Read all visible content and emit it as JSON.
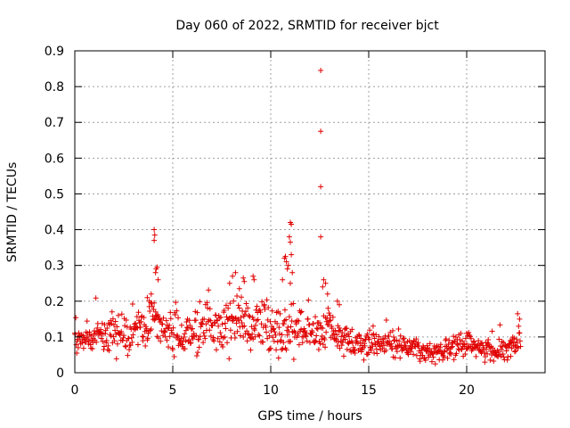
{
  "chart_data": {
    "type": "scatter",
    "title": "Day 060 of 2022, SRMTID for receiver bjct",
    "xlabel": "GPS time / hours",
    "ylabel": "SRMTID / TECUs",
    "xlim": [
      0,
      24
    ],
    "ylim": [
      0,
      0.9
    ],
    "xticks": [
      0,
      5,
      10,
      15,
      20
    ],
    "yticks": [
      0,
      0.1,
      0.2,
      0.3,
      0.4,
      0.5,
      0.6,
      0.7,
      0.8,
      0.9
    ],
    "xtick_labels": [
      "0",
      "5",
      "10",
      "15",
      "20"
    ],
    "ytick_labels": [
      "0",
      "0.1",
      "0.2",
      "0.3",
      "0.4",
      "0.5",
      "0.6",
      "0.7",
      "0.8",
      "0.9"
    ],
    "grid": true,
    "marker": "+",
    "color": "#e00000",
    "series": [
      {
        "name": "SRMTID",
        "trend": [
          [
            0.0,
            0.1
          ],
          [
            0.5,
            0.09
          ],
          [
            1.0,
            0.11
          ],
          [
            1.5,
            0.12
          ],
          [
            2.0,
            0.11
          ],
          [
            2.5,
            0.1
          ],
          [
            3.0,
            0.11
          ],
          [
            3.5,
            0.13
          ],
          [
            4.0,
            0.14
          ],
          [
            4.5,
            0.13
          ],
          [
            5.0,
            0.11
          ],
          [
            5.5,
            0.1
          ],
          [
            6.0,
            0.11
          ],
          [
            6.5,
            0.12
          ],
          [
            7.0,
            0.13
          ],
          [
            7.5,
            0.12
          ],
          [
            8.0,
            0.15
          ],
          [
            8.5,
            0.13
          ],
          [
            9.0,
            0.12
          ],
          [
            9.5,
            0.13
          ],
          [
            10.0,
            0.12
          ],
          [
            10.5,
            0.11
          ],
          [
            11.0,
            0.13
          ],
          [
            11.5,
            0.12
          ],
          [
            12.0,
            0.1
          ],
          [
            12.5,
            0.11
          ],
          [
            13.0,
            0.12
          ],
          [
            13.5,
            0.1
          ],
          [
            14.0,
            0.09
          ],
          [
            14.5,
            0.08
          ],
          [
            15.0,
            0.08
          ],
          [
            15.5,
            0.08
          ],
          [
            16.0,
            0.08
          ],
          [
            16.5,
            0.07
          ],
          [
            17.0,
            0.075
          ],
          [
            17.5,
            0.07
          ],
          [
            18.0,
            0.055
          ],
          [
            18.5,
            0.06
          ],
          [
            19.0,
            0.065
          ],
          [
            19.5,
            0.07
          ],
          [
            20.0,
            0.08
          ],
          [
            20.5,
            0.07
          ],
          [
            21.0,
            0.065
          ],
          [
            21.5,
            0.06
          ],
          [
            22.0,
            0.07
          ],
          [
            22.5,
            0.08
          ],
          [
            22.75,
            0.09
          ]
        ],
        "spread": [
          [
            0.0,
            0.035
          ],
          [
            4.0,
            0.05
          ],
          [
            8.0,
            0.055
          ],
          [
            11.0,
            0.05
          ],
          [
            13.0,
            0.04
          ],
          [
            15.0,
            0.03
          ],
          [
            18.0,
            0.025
          ],
          [
            21.0,
            0.025
          ],
          [
            22.75,
            0.03
          ]
        ],
        "sample_step_hours": 0.025,
        "outliers": [
          [
            4.05,
            0.4
          ],
          [
            4.08,
            0.385
          ],
          [
            4.05,
            0.37
          ],
          [
            4.15,
            0.29
          ],
          [
            4.2,
            0.295
          ],
          [
            4.12,
            0.28
          ],
          [
            4.25,
            0.26
          ],
          [
            3.9,
            0.22
          ],
          [
            3.7,
            0.21
          ],
          [
            3.8,
            0.2
          ],
          [
            8.05,
            0.27
          ],
          [
            8.2,
            0.28
          ],
          [
            8.6,
            0.265
          ],
          [
            8.65,
            0.255
          ],
          [
            7.9,
            0.25
          ],
          [
            8.4,
            0.235
          ],
          [
            10.6,
            0.26
          ],
          [
            10.7,
            0.32
          ],
          [
            10.75,
            0.325
          ],
          [
            10.8,
            0.31
          ],
          [
            10.85,
            0.29
          ],
          [
            11.0,
            0.42
          ],
          [
            11.05,
            0.415
          ],
          [
            10.95,
            0.38
          ],
          [
            11.0,
            0.365
          ],
          [
            11.05,
            0.33
          ],
          [
            10.9,
            0.3
          ],
          [
            11.1,
            0.28
          ],
          [
            11.0,
            0.25
          ],
          [
            12.55,
            0.845
          ],
          [
            12.55,
            0.675
          ],
          [
            12.55,
            0.52
          ],
          [
            12.55,
            0.38
          ],
          [
            12.7,
            0.26
          ],
          [
            12.8,
            0.25
          ],
          [
            12.65,
            0.24
          ],
          [
            12.9,
            0.22
          ],
          [
            13.4,
            0.2
          ],
          [
            13.5,
            0.19
          ],
          [
            9.1,
            0.27
          ],
          [
            9.15,
            0.26
          ],
          [
            20.0,
            0.11
          ],
          [
            22.6,
            0.165
          ],
          [
            22.7,
            0.15
          ]
        ]
      }
    ]
  }
}
